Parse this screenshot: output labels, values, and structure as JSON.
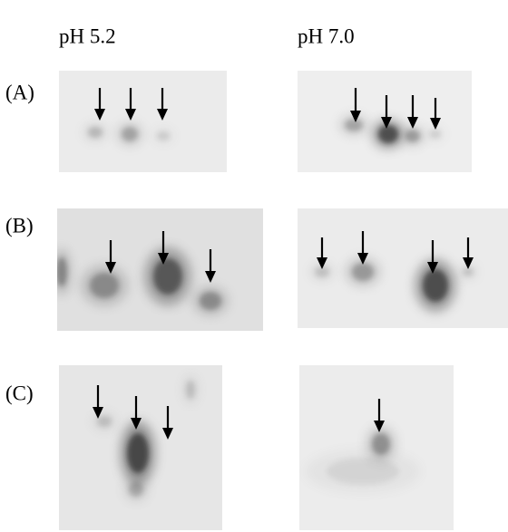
{
  "columns": [
    "pH 5.2",
    "pH 7.0"
  ],
  "rows": [
    "(A)",
    "(B)",
    "(C)"
  ]
}
